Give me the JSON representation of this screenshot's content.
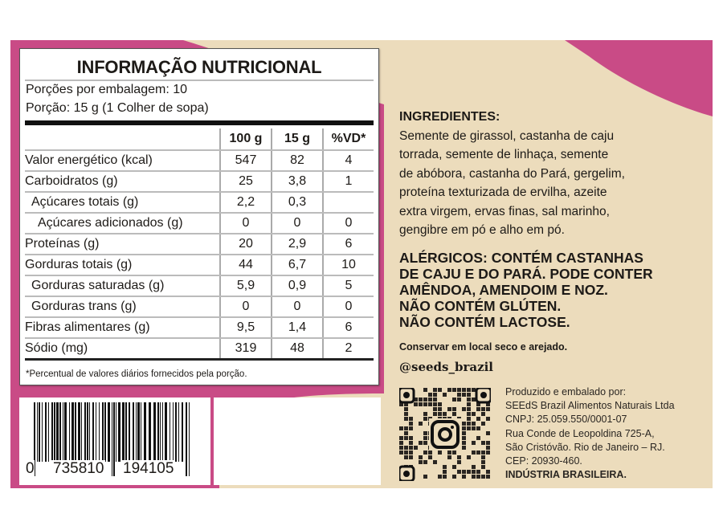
{
  "colors": {
    "pink": "#c94b86",
    "beige": "#ecdcbc"
  },
  "nutrition": {
    "title": "INFORMAÇÃO NUTRICIONAL",
    "servings_per_package": "Porções por embalagem: 10",
    "serving_size": "Porção: 15 g (1 Colher de sopa)",
    "columns": [
      "",
      "100 g",
      "15 g",
      "%VD*"
    ],
    "rows": [
      {
        "name": "Valor energético (kcal)",
        "v100": "547",
        "v15": "82",
        "vd": "4",
        "indent": 0
      },
      {
        "name": "Carboidratos (g)",
        "v100": "25",
        "v15": "3,8",
        "vd": "1",
        "indent": 0
      },
      {
        "name": "Açúcares totais (g)",
        "v100": "2,2",
        "v15": "0,3",
        "vd": "",
        "indent": 1
      },
      {
        "name": "Açúcares adicionados (g)",
        "v100": "0",
        "v15": "0",
        "vd": "0",
        "indent": 2
      },
      {
        "name": "Proteínas (g)",
        "v100": "20",
        "v15": "2,9",
        "vd": "6",
        "indent": 0
      },
      {
        "name": "Gorduras totais (g)",
        "v100": "44",
        "v15": "6,7",
        "vd": "10",
        "indent": 0
      },
      {
        "name": "Gorduras saturadas (g)",
        "v100": "5,9",
        "v15": "0,9",
        "vd": "5",
        "indent": 1
      },
      {
        "name": "Gorduras trans (g)",
        "v100": "0",
        "v15": "0",
        "vd": "0",
        "indent": 1
      },
      {
        "name": "Fibras alimentares (g)",
        "v100": "9,5",
        "v15": "1,4",
        "vd": "6",
        "indent": 0
      },
      {
        "name": "Sódio (mg)",
        "v100": "319",
        "v15": "48",
        "vd": "2",
        "indent": 0
      }
    ],
    "footnote": "*Percentual de valores diários fornecidos pela porção."
  },
  "barcode": {
    "first": "0",
    "left": "735810",
    "right": "194105"
  },
  "ingredients": {
    "heading": "INGREDIENTES:",
    "lines": [
      "Semente de girassol, castanha de caju",
      "torrada, semente de linhaça, semente",
      "de abóbora, castanha do Pará, gergelim,",
      "proteína texturizada de ervilha, azeite",
      "extra virgem, ervas finas, sal marinho,",
      "gengibre em pó e alho em pó."
    ]
  },
  "allergens": [
    "ALÉRGICOS: CONTÉM CASTANHAS",
    "DE CAJU E DO PARÁ. PODE CONTER",
    "AMÊNDOA, AMENDOIM E NOZ.",
    "NÃO CONTÉM GLÚTEN.",
    "NÃO CONTÉM LACTOSE."
  ],
  "storage": "Conservar em local seco e arejado.",
  "instagram": "@seeds_brazil",
  "producer": [
    "Produzido e embalado por:",
    "SEEdS Brazil Alimentos Naturais Ltda",
    "CNPJ: 25.059.550/0001-07",
    "Rua Conde de Leopoldina 725-A,",
    "São Cristóvão. Rio de Janeiro – RJ.",
    "CEP: 20930-460.",
    "INDÚSTRIA BRASILEIRA."
  ],
  "qr_icon": "instagram-icon"
}
